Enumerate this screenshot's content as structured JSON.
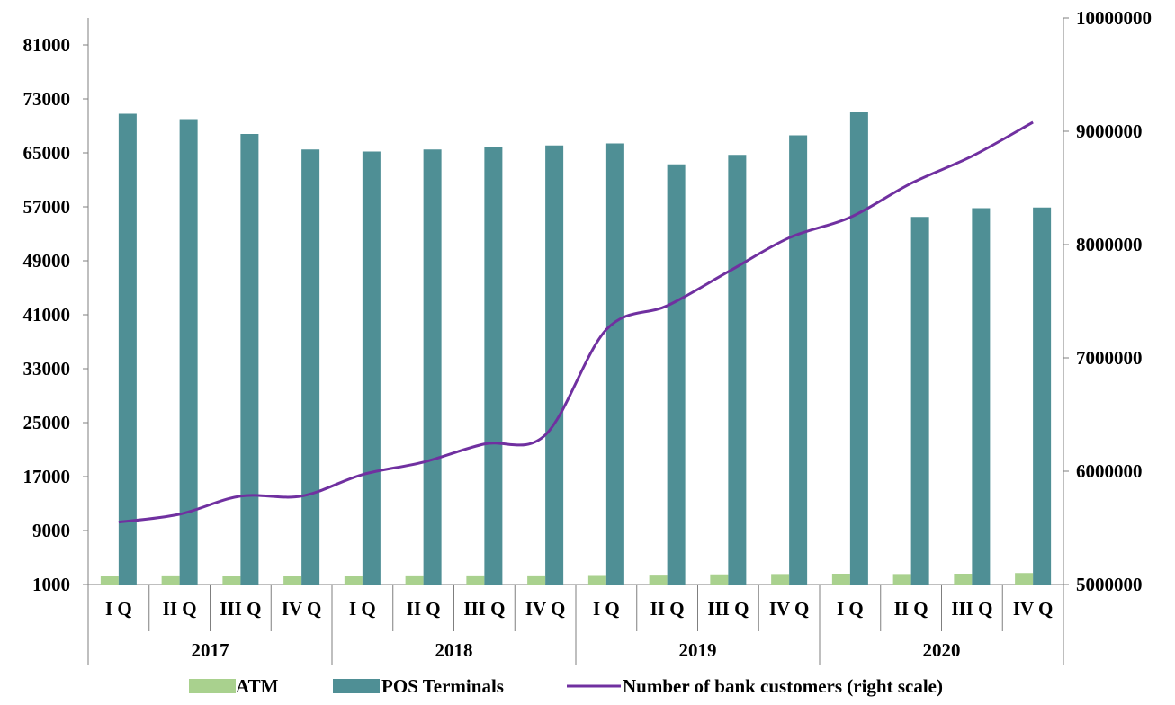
{
  "chart_data": {
    "type": "bar",
    "groups": [
      "2017",
      "2018",
      "2019",
      "2020"
    ],
    "categories": [
      "I Q",
      "II Q",
      "III Q",
      "IV Q",
      "I Q",
      "II Q",
      "III Q",
      "IV Q",
      "I Q",
      "II Q",
      "III Q",
      "IV Q",
      "I Q",
      "II Q",
      "III Q",
      "IV Q"
    ],
    "series": [
      {
        "name": "ATM",
        "axis": "left",
        "type": "bar",
        "color": "#a9d18e",
        "values": [
          2300,
          2350,
          2300,
          2250,
          2300,
          2350,
          2350,
          2350,
          2400,
          2450,
          2500,
          2550,
          2600,
          2550,
          2600,
          2700
        ]
      },
      {
        "name": "POS Terminals",
        "axis": "left",
        "type": "bar",
        "color": "#4f8f95",
        "values": [
          70800,
          70000,
          67800,
          65500,
          65200,
          65500,
          65900,
          66100,
          66400,
          63300,
          64700,
          67600,
          71100,
          55500,
          56800,
          56900
        ]
      },
      {
        "name": "Number of bank customers (right scale)",
        "axis": "right",
        "type": "line",
        "color": "#7030a0",
        "values": [
          5550000,
          5620000,
          5780000,
          5780000,
          5970000,
          6080000,
          6240000,
          6320000,
          7250000,
          7460000,
          7760000,
          8060000,
          8240000,
          8540000,
          8780000,
          9080000
        ]
      }
    ],
    "y_left": {
      "min": 1000,
      "max": 85000,
      "ticks": [
        1000,
        9000,
        17000,
        25000,
        33000,
        41000,
        49000,
        57000,
        65000,
        73000,
        81000
      ]
    },
    "y_right": {
      "min": 5000000,
      "max": 10000000,
      "ticks": [
        5000000,
        6000000,
        7000000,
        8000000,
        9000000,
        10000000
      ]
    },
    "tick_labels_left": [
      "1000",
      "9000",
      "17000",
      "25000",
      "33000",
      "41000",
      "49000",
      "57000",
      "65000",
      "73000",
      "81000"
    ],
    "tick_labels_right": [
      "5000000",
      "6000000",
      "7000000",
      "8000000",
      "9000000",
      "10000000"
    ],
    "title": "",
    "xlabel": "",
    "ylabel": "",
    "grid": false,
    "legend": "bottom"
  }
}
